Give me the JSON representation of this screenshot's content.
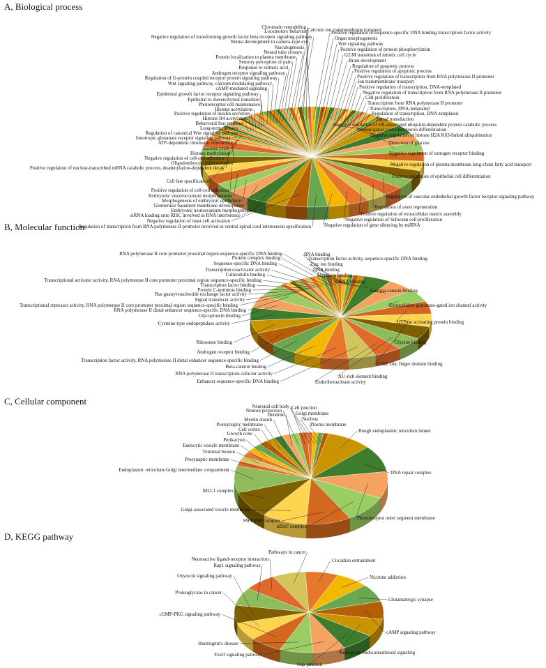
{
  "chart_data": [
    {
      "type": "pie",
      "title": "A, Biological process",
      "categories": [
        "Calcium ion transmembrane transport",
        "Positive regulation of sequence-specific DNA binding transcription factor activity",
        "Organ morphogenesis",
        "Wnt signaling pathway",
        "Positive regulation of protein phosphorylation",
        "G2/M transition of mitotic cell cycle",
        "Brain development",
        "Regulation of apoptotic process",
        "Positive regulation of apoptotic process",
        "Positive regulation of transcription from RNA polymerase II promoter",
        "Ion transmembrane transport",
        "Positive regulation of transcription, DNA-templated",
        "Negative regulation of transcription from RNA polymerase II promoter",
        "Cell proliferation",
        "Transcription from RNA polymerase II promoter",
        "Transcription, DNA-templated",
        "Regulation of transcription, DNA-templated",
        "Signal transduction",
        "Negative regulation of ER-associated ubiquitin-dependent protein catabolic process",
        "Ventral spinal cord interneuron differentiation",
        "Negative regulation of histone H2A K63-linked ubiquitination",
        "Detection of glucose",
        "Negative regulation of estrogen receptor binding",
        "Negative regulation of plasma membrane long-chain fatty acid transport",
        "Positive regulation of epithelial cell differentiation",
        "Regulation of vascular endothelial growth factor receptor signaling pathway",
        "Regulation of axon regeneration",
        "Positive regulation of extracellular matrix assembly",
        "Negative regulation of Schwann cell proliferation",
        "Negative regulation of gene silencing by miRNA",
        "Regulation of transcription from RNA polymerase II promoter involved in ventral spinal cord interneuron specification",
        "Negative regulation of mast cell activation",
        "siRNA loading onto RISC involved in RNA interference",
        "Embryonic neurocranium morphogenesis",
        "Glomerular basement membrane development",
        "Morphogenesis of embryonic epithelium",
        "Embryonic viscerocranium morphogenesis",
        "Positive regulation of cell-cell adhesion",
        "Cell fate specification",
        "Positive regulation of nuclear-transcribed mRNA catabolic process, deadenylation-dependent decay",
        "Oligodendrocyte differentiation",
        "Negative regulation of cell-cell adhesion",
        "Histone methylation",
        "Estrous cycle",
        "ATP-dependent chromatin remodeling",
        "Ionotropic glutamate receptor signaling pathway",
        "Regulation of canonical Wnt signaling pathway",
        "Long-term memory",
        "Behavioral fear response",
        "Histone H4 acetylation",
        "Positive regulation of insulin secretion",
        "Histone acetylation",
        "Photoreceptor cell maintenance",
        "Epithelial to mesenchymal transition",
        "Epidermal growth factor receptor signaling pathway",
        "cAMP-mediated signaling",
        "Wnt signaling pathway, calcium modulating pathway",
        "Regulation of G-protein coupled receptor protein signaling pathway",
        "Androgen receptor signaling pathway",
        "Response to retinoic acid",
        "Sensory perception of pain",
        "Protein localization to plasma membrane",
        "Neural tube closure",
        "Vasculogenesis",
        "Retina development in camera-type eye",
        "Negative regulation of transforming growth factor beta receptor signaling pathway",
        "Locomotory behavior",
        "Chromatin remodeling"
      ]
    },
    {
      "type": "pie",
      "title": "B, Molecular function",
      "categories": [
        "RNA binding",
        "Transcription factor activity, sequence-specific DNA binding",
        "Zinc ion binding",
        "DNA binding",
        "Metal ion binding",
        "siRNA binding",
        "Gamma-catenin binding",
        "Extracellular-glutamate-gated ion channel activity",
        "GTPase activating protein binding",
        "Glycine binding",
        "C2H2 zinc finger domain binding",
        "AU-rich element binding",
        "Endoribonuclease activity",
        "Enhancer sequence-specific DNA binding",
        "RNA polymerase II transcription cofactor activity",
        "Beta-catenin binding",
        "Transcription factor activity, RNA polymerase II distal enhancer sequence-specific binding",
        "Androgen receptor binding",
        "Ribosome binding",
        "Cysteine-type endopeptidase activity",
        "Glycoprotein binding",
        "RNA polymerase II distal enhancer sequence-specific DNA binding",
        "Transcriptional repressor activity, RNA polymerase II core promoter proximal region sequence-specific binding",
        "Signal transducer activity",
        "Ras guanyl-nucleotide exchange factor activity",
        "Protein C-terminus binding",
        "Transcription factor binding",
        "Transcriptional activator activity, RNA polymerase II core promoter proximal region sequence-specific binding",
        "Calmodulin binding",
        "Transcription coactivator activity",
        "Sequence-specific DNA binding",
        "Protein complex binding",
        "RNA polymerase II core promoter proximal region sequence-specific DNA binding"
      ]
    },
    {
      "type": "pie",
      "title": "C, Cellular component",
      "categories": [
        "Cell junction",
        "Golgi membrane",
        "Nucleus",
        "Plasma membrane",
        "Rough endoplasmic reticulum lumen",
        "DNA repair complex",
        "Photoreceptor outer segment membrane",
        "nBAF complex",
        "SWI/SNF complex",
        "Golgi-associated vesicle membrane",
        "MLL1 complex",
        "Endoplasmic reticulum-Golgi intermediate compartment",
        "Presynaptic membrane",
        "Terminal bouton",
        "Endocytic vesicle membrane",
        "Perikaryon",
        "Growth cone",
        "Cell cortex",
        "Postsynaptic membrane",
        "Myelin sheath",
        "Dendrite",
        "Neuron projection",
        "Neuronal cell body"
      ]
    },
    {
      "type": "pie",
      "title": "D, KEGG pathway",
      "categories": [
        "Circadian entrainment",
        "Nicotine addiction",
        "Glutamatergic synapse",
        "cAMP signaling pathway",
        "Retrograde endocannabinoid signaling",
        "Gap junction",
        "FoxO signaling pathway",
        "Huntington's disease",
        "cGMP-PKG signaling pathway",
        "Proteoglycans in cancer",
        "Oxytocin signaling pathway",
        "Rap1 signaling pathway",
        "Neuroactive ligand-receptor interaction",
        "Pathways in cancer"
      ]
    }
  ],
  "palette": [
    "#e8772e",
    "#f5b800",
    "#6aa84f",
    "#b45f06",
    "#c99400",
    "#3f7d2e",
    "#f4a460",
    "#9acd64",
    "#d2691e",
    "#ffd54f",
    "#7f6000",
    "#8fbc5a",
    "#e06a2c",
    "#d4c45c"
  ]
}
